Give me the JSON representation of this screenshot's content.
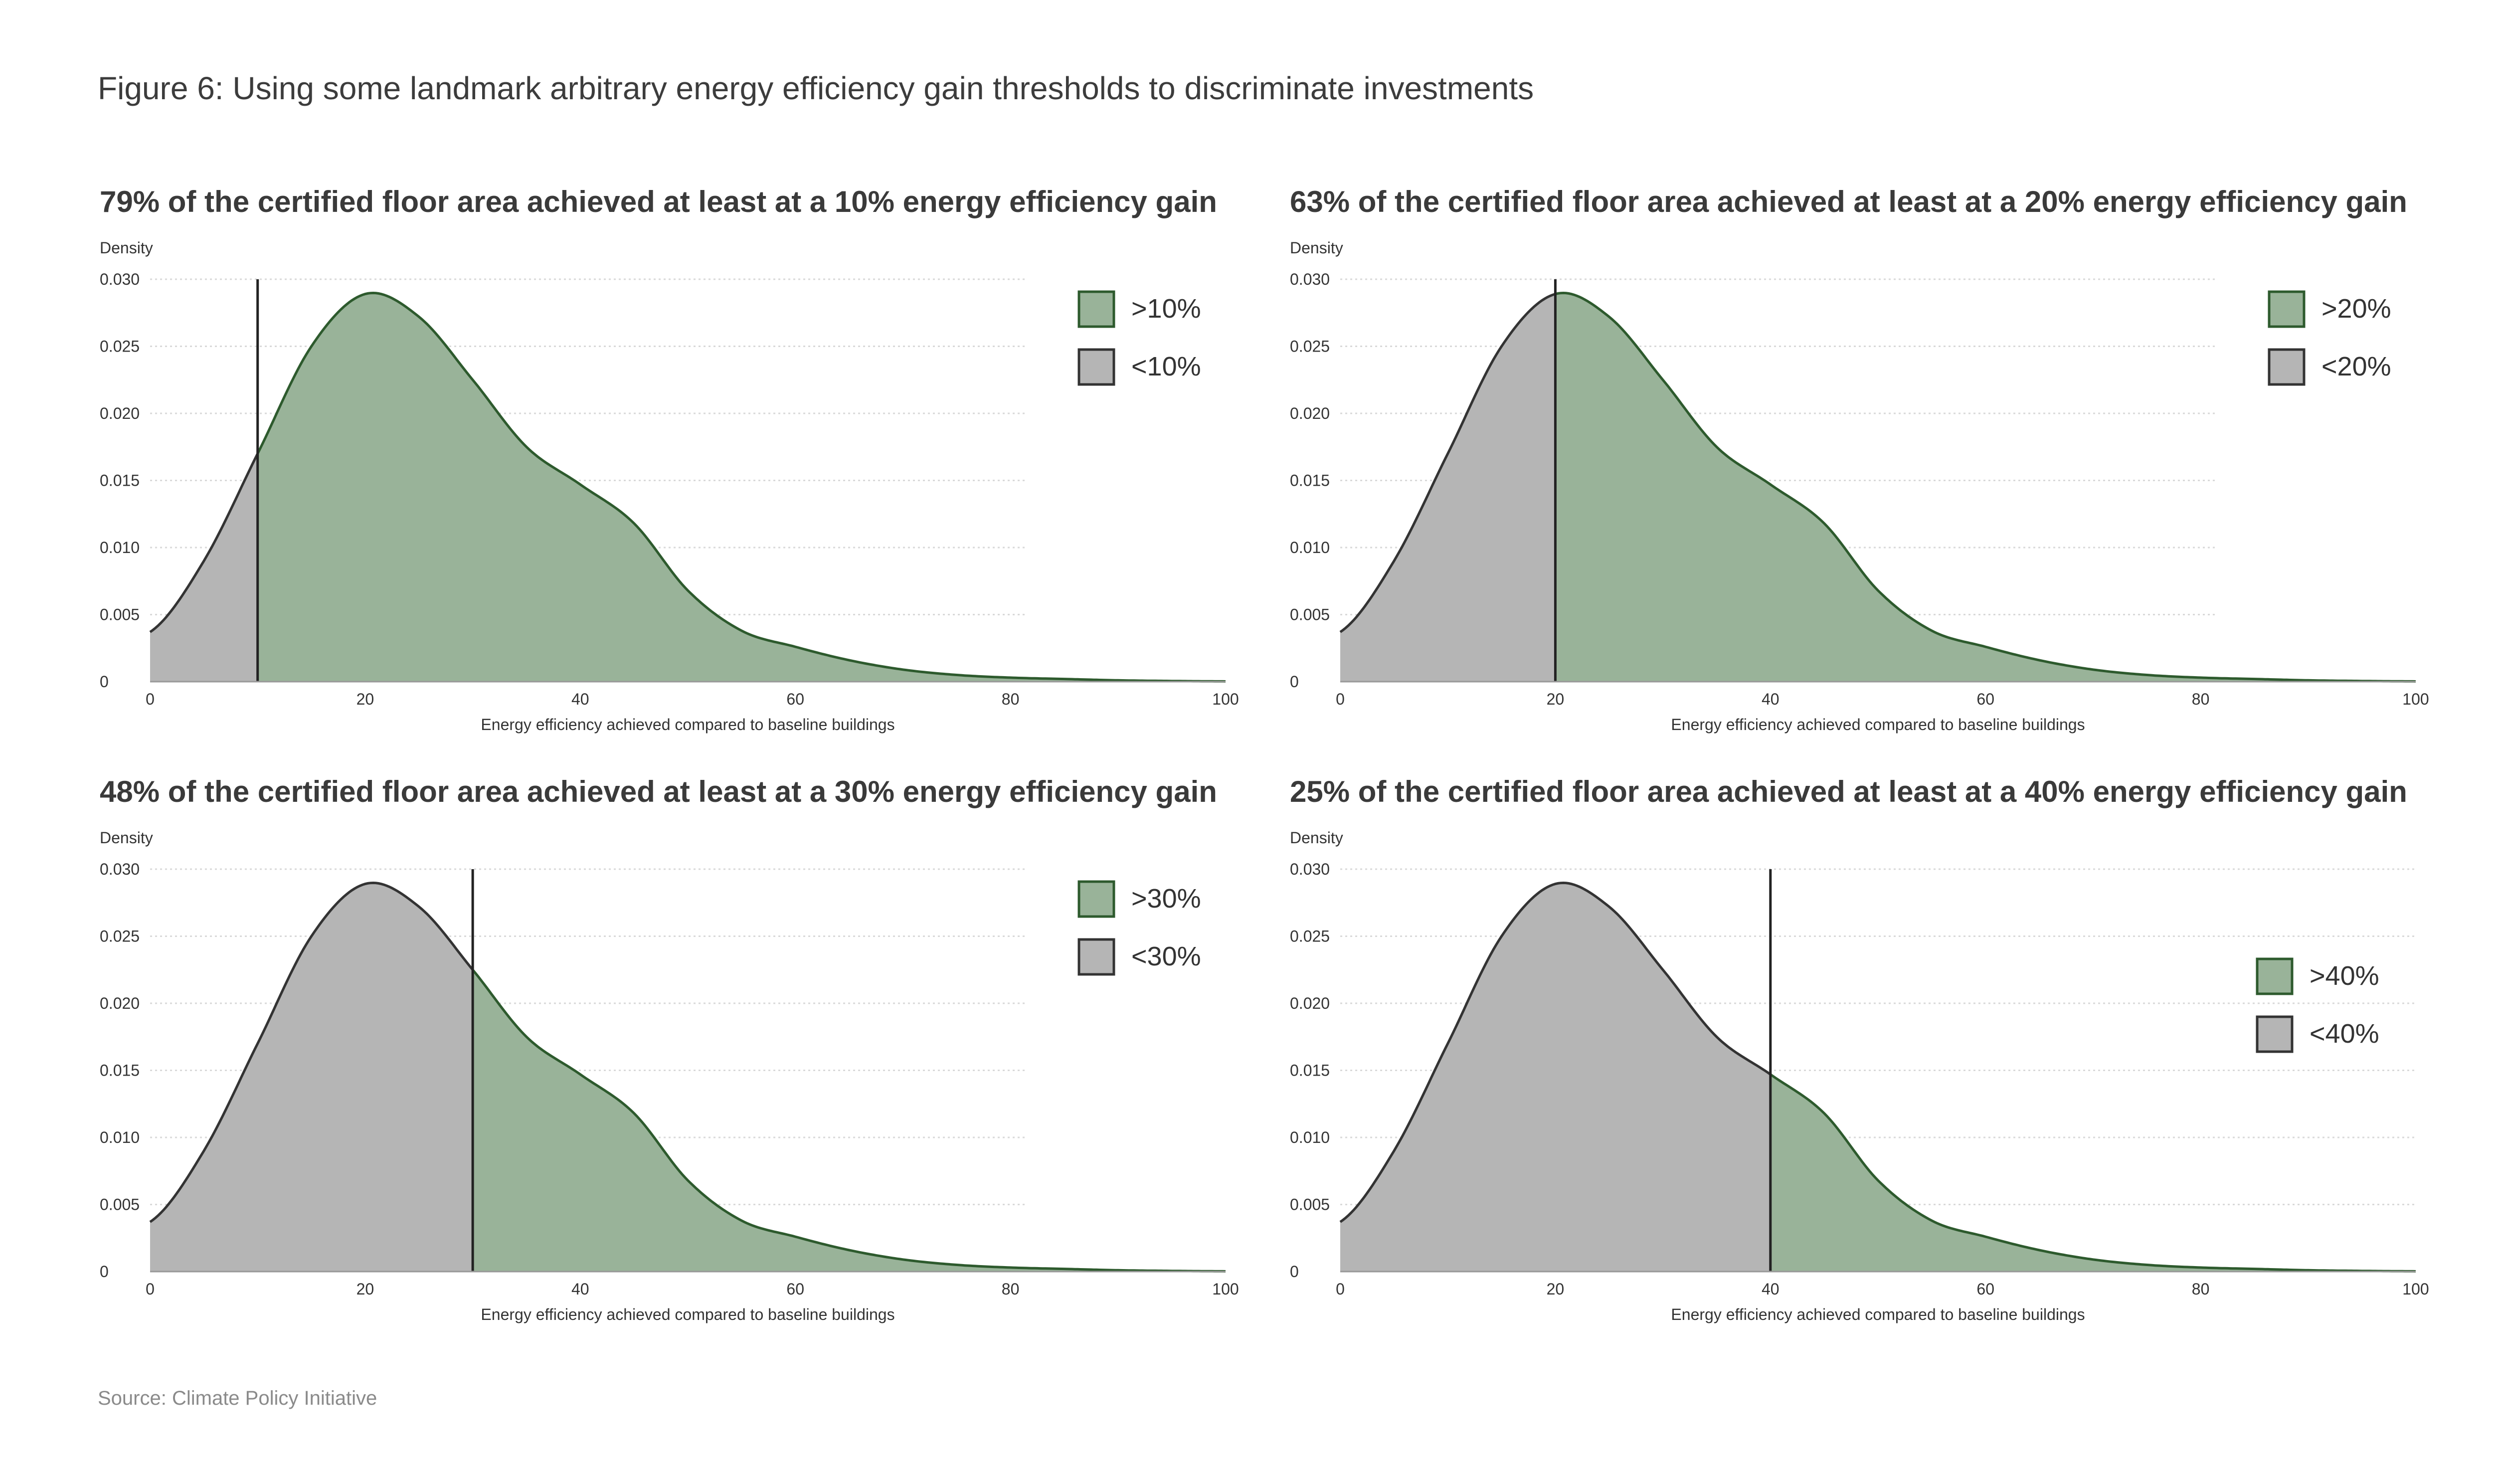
{
  "figure": {
    "title": "Figure 6: Using some landmark arbitrary energy efficiency gain thresholds to discriminate investments",
    "source": "Source: Climate Policy Initiative"
  },
  "colors": {
    "above_fill": "#99b399",
    "above_stroke": "#2d5a2d",
    "below_fill": "#b5b5b5",
    "below_stroke": "#333333",
    "grid": "#d9d9d9"
  },
  "chart_data": [
    {
      "type": "area",
      "title": "79% of the certified floor area achieved at least at a 10% energy efficiency gain",
      "xlabel": "Energy efficiency achieved compared to baseline buildings",
      "ylabel": "Density",
      "threshold": 10,
      "xlim": [
        0,
        100
      ],
      "ylim": [
        0,
        0.03
      ],
      "x_ticks": [
        "0",
        "20",
        "40",
        "60",
        "80",
        "100"
      ],
      "y_ticks": [
        "0",
        "0.005",
        "0.010",
        "0.015",
        "0.020",
        "0.025",
        "0.030"
      ],
      "legend": [
        {
          "name": ">10%",
          "class": "above"
        },
        {
          "name": "<10%",
          "class": "below"
        }
      ],
      "legend_position": "top-right",
      "grid": "horizontal dotted"
    },
    {
      "type": "area",
      "title": "63% of the certified floor area achieved at least at a 20% energy efficiency gain",
      "xlabel": "Energy efficiency achieved compared to baseline buildings",
      "ylabel": "Density",
      "threshold": 20,
      "xlim": [
        0,
        100
      ],
      "ylim": [
        0,
        0.03
      ],
      "x_ticks": [
        "0",
        "20",
        "40",
        "60",
        "80",
        "100"
      ],
      "y_ticks": [
        "0",
        "0.005",
        "0.010",
        "0.015",
        "0.020",
        "0.025",
        "0.030"
      ],
      "legend": [
        {
          "name": ">20%",
          "class": "above"
        },
        {
          "name": "<20%",
          "class": "below"
        }
      ],
      "legend_position": "top-right",
      "grid": "horizontal dotted"
    },
    {
      "type": "area",
      "title": "48% of the certified floor area achieved at least at a 30% energy efficiency gain",
      "xlabel": "Energy efficiency achieved compared to baseline buildings",
      "ylabel": "Density",
      "threshold": 30,
      "xlim": [
        0,
        100
      ],
      "ylim": [
        0,
        0.03
      ],
      "x_ticks": [
        "0",
        "20",
        "40",
        "60",
        "80",
        "100"
      ],
      "y_ticks": [
        "0",
        "0.005",
        "0.010",
        "0.015",
        "0.020",
        "0.025",
        "0.030"
      ],
      "legend": [
        {
          "name": ">30%",
          "class": "above"
        },
        {
          "name": "<30%",
          "class": "below"
        }
      ],
      "legend_position": "top-right",
      "grid": "horizontal dotted"
    },
    {
      "type": "area",
      "title": "25% of the certified floor area achieved at least at a 40% energy efficiency gain",
      "xlabel": "Energy efficiency achieved compared to baseline buildings",
      "ylabel": "Density",
      "threshold": 40,
      "xlim": [
        0,
        100
      ],
      "ylim": [
        0,
        0.03
      ],
      "x_ticks": [
        "0",
        "20",
        "40",
        "60",
        "80",
        "100"
      ],
      "y_ticks": [
        "0",
        "0.005",
        "0.010",
        "0.015",
        "0.020",
        "0.025",
        "0.030"
      ],
      "legend": [
        {
          "name": ">40%",
          "class": "above"
        },
        {
          "name": "<40%",
          "class": "below"
        }
      ],
      "legend_position": "right",
      "grid": "horizontal dotted"
    }
  ],
  "density_curve": {
    "x": [
      0,
      5,
      10,
      15,
      20,
      25,
      30,
      35,
      40,
      45,
      50,
      55,
      60,
      65,
      70,
      75,
      80,
      85,
      90,
      95,
      100
    ],
    "y": [
      0.0037,
      0.009,
      0.017,
      0.025,
      0.0289,
      0.0272,
      0.0225,
      0.0175,
      0.0147,
      0.0118,
      0.0068,
      0.0038,
      0.0026,
      0.0016,
      0.0009,
      0.0005,
      0.0003,
      0.0002,
      0.0001,
      5e-05,
      2e-05
    ]
  }
}
